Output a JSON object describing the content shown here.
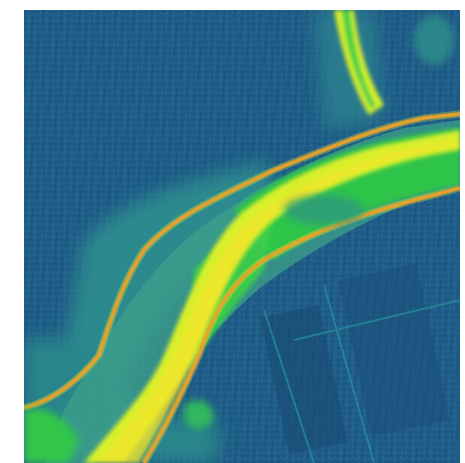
{
  "map": {
    "kind": "raster heatmap",
    "description_visible_text": "",
    "colormap": [
      "#1f4f7a",
      "#236a8e",
      "#2a8f8a",
      "#3aa77a",
      "#22c64a",
      "#76e020",
      "#d4f028",
      "#f3e82a",
      "#f4b23a",
      "#e87a2c"
    ],
    "base_color": "#1f5c86"
  }
}
